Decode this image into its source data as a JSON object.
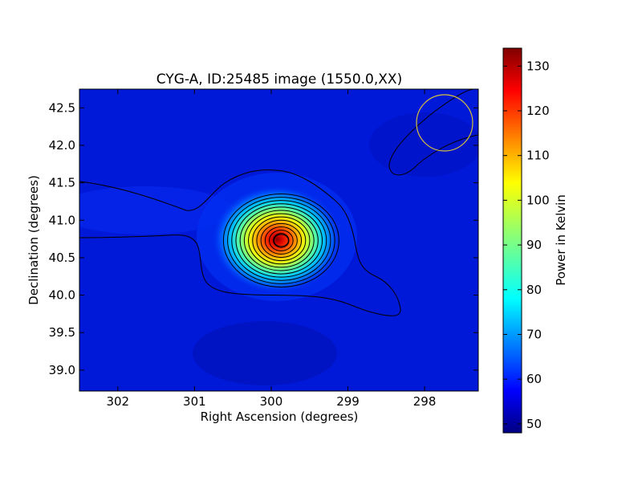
{
  "chart_data": {
    "type": "heatmap",
    "title": "CYG-A, ID:25485 image (1550.0,XX)",
    "xlabel": "Right Ascension (degrees)",
    "ylabel": "Declination (degrees)",
    "xlim": [
      302.5,
      297.3
    ],
    "ylim": [
      38.72,
      42.75
    ],
    "x_ticks": [
      {
        "value": 302,
        "label": "302"
      },
      {
        "value": 301,
        "label": "301"
      },
      {
        "value": 300,
        "label": "300"
      },
      {
        "value": 299,
        "label": "299"
      },
      {
        "value": 298,
        "label": "298"
      }
    ],
    "y_ticks": [
      {
        "value": 39.0,
        "label": "39.0"
      },
      {
        "value": 39.5,
        "label": "39.5"
      },
      {
        "value": 40.0,
        "label": "40.0"
      },
      {
        "value": 40.5,
        "label": "40.5"
      },
      {
        "value": 41.0,
        "label": "41.0"
      },
      {
        "value": 41.5,
        "label": "41.5"
      },
      {
        "value": 42.0,
        "label": "42.0"
      },
      {
        "value": 42.5,
        "label": "42.5"
      }
    ],
    "colormap": "jet",
    "colorbar": {
      "label": "Power in Kelvin",
      "range": [
        48,
        134
      ],
      "ticks": [
        {
          "value": 50,
          "label": "50"
        },
        {
          "value": 60,
          "label": "60"
        },
        {
          "value": 70,
          "label": "70"
        },
        {
          "value": 80,
          "label": "80"
        },
        {
          "value": 90,
          "label": "90"
        },
        {
          "value": 100,
          "label": "100"
        },
        {
          "value": 110,
          "label": "110"
        },
        {
          "value": 120,
          "label": "120"
        },
        {
          "value": 130,
          "label": "130"
        }
      ]
    },
    "source": {
      "ra": 299.87,
      "dec": 40.73,
      "peak_kelvin": 134
    },
    "background_kelvin": 52,
    "beam_circle": {
      "ra": 297.65,
      "dec": 42.29,
      "radius_deg": 0.36,
      "color": "#d4c23c"
    },
    "contour_count": 13,
    "grid": false
  }
}
